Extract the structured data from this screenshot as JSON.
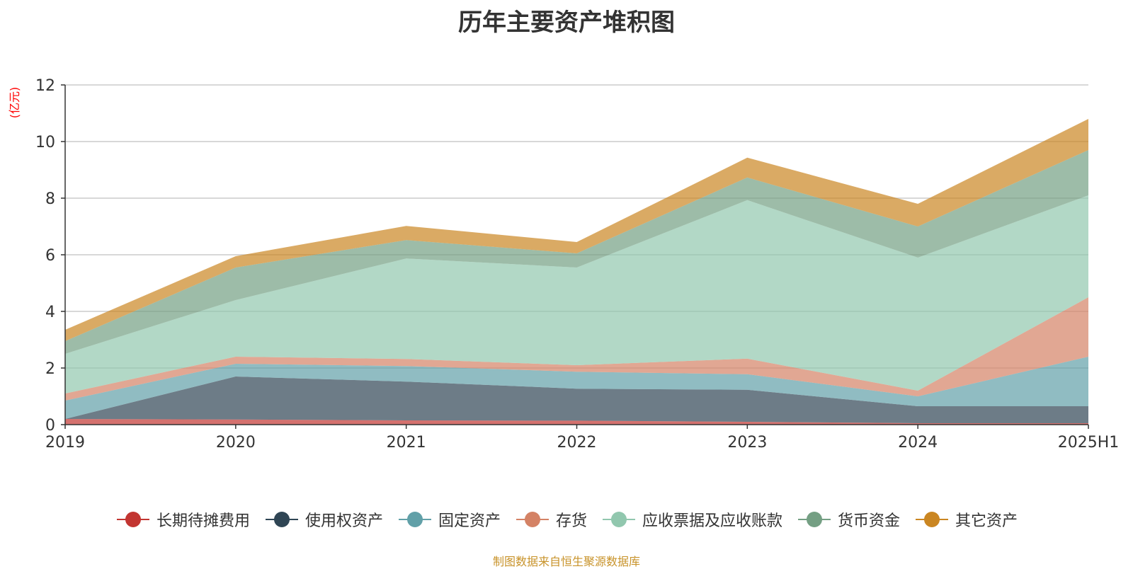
{
  "chart_data": {
    "type": "area",
    "stacked": true,
    "title": "历年主要资产堆积图",
    "ylabel": "(亿元)",
    "xlabel": "",
    "categories": [
      "2019",
      "2020",
      "2021",
      "2022",
      "2023",
      "2024",
      "2025H1"
    ],
    "ylim": [
      0,
      12
    ],
    "yticks": [
      0,
      2,
      4,
      6,
      8,
      10,
      12
    ],
    "grid": true,
    "legend_position": "bottom",
    "series": [
      {
        "name": "长期待摊费用",
        "color": "#c23531",
        "values": [
          0.2,
          0.18,
          0.15,
          0.14,
          0.1,
          0.05,
          0.05
        ]
      },
      {
        "name": "使用权资产",
        "color": "#2f4554",
        "values": [
          0.0,
          1.52,
          1.37,
          1.13,
          1.13,
          0.6,
          0.6
        ]
      },
      {
        "name": "固定资产",
        "color": "#61a0a8",
        "values": [
          0.65,
          0.45,
          0.55,
          0.6,
          0.55,
          0.35,
          1.75
        ]
      },
      {
        "name": "存货",
        "color": "#d48265",
        "values": [
          0.25,
          0.25,
          0.25,
          0.23,
          0.55,
          0.2,
          2.1
        ]
      },
      {
        "name": "应收票据及应收账款",
        "color": "#91c7ae",
        "values": [
          1.4,
          2.0,
          3.55,
          3.45,
          5.6,
          4.7,
          3.6
        ]
      },
      {
        "name": "货币资金",
        "color": "#749f83",
        "values": [
          0.45,
          1.15,
          0.65,
          0.5,
          0.8,
          1.1,
          1.6
        ]
      },
      {
        "name": "其它资产",
        "color": "#ca8622",
        "values": [
          0.4,
          0.4,
          0.5,
          0.4,
          0.7,
          0.8,
          1.1
        ]
      }
    ],
    "source_note": "制图数据来自恒生聚源数据库"
  }
}
